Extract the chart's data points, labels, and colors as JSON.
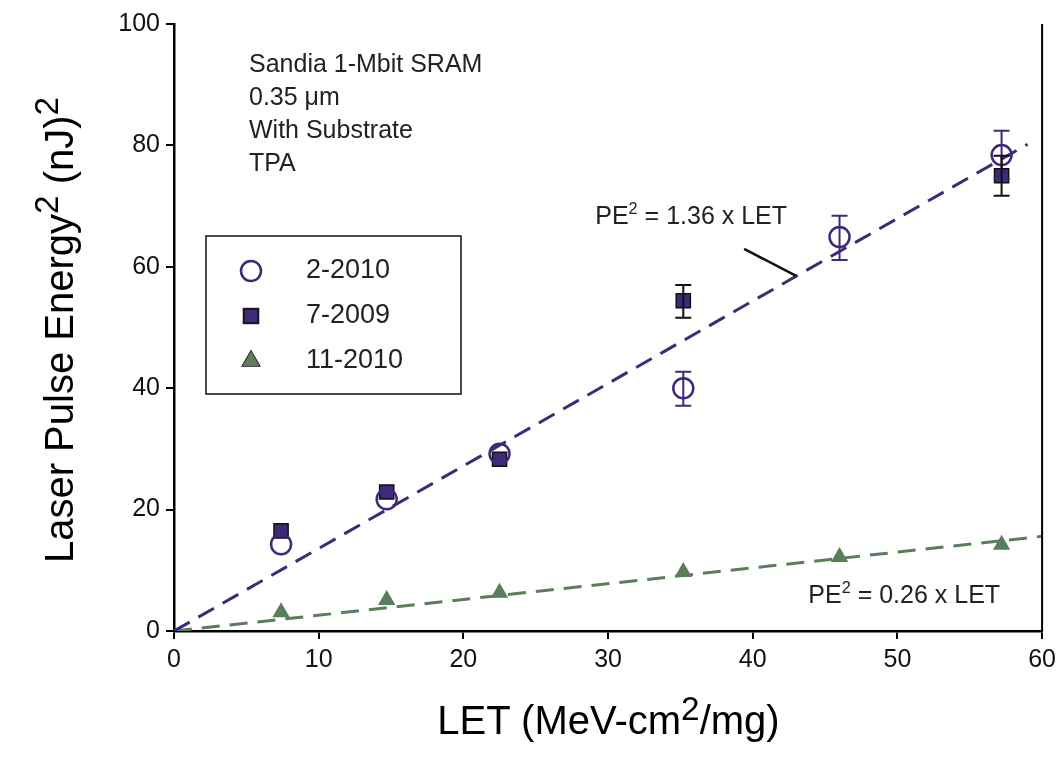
{
  "chart_data": {
    "type": "scatter",
    "xlabel": "LET (MeV-cm$^{2}$/mg)",
    "ylabel": "Laser Pulse Energy$^{2}$ (nJ)$^{2}$",
    "xlim": [
      0,
      60
    ],
    "xticks": [
      0,
      10,
      20,
      30,
      40,
      50,
      60
    ],
    "ylim": [
      0,
      100
    ],
    "yticks": [
      0,
      20,
      40,
      60,
      80,
      100
    ],
    "legend": "left",
    "grid": false,
    "annotations": [
      "Sandia 1-Mbit SRAM",
      "0.35 μm",
      "With Substrate",
      "TPA",
      {
        "text": "PE$^{2}$ = 1.36 x LET",
        "x": 43,
        "y": 58.5
      },
      "PE$^{2}$ = 0.26 x LET"
    ],
    "series": [
      {
        "name": "2-2010",
        "color": "#3f2a7a",
        "marker": "circle",
        "x": [
          7.4,
          14.7,
          22.5,
          35.2,
          46,
          57.2
        ],
        "values": [
          14.3,
          21.7,
          29.2,
          40,
          64.9,
          78.4
        ],
        "errors": [
          null,
          null,
          null,
          [
            37.1,
            42.7
          ],
          [
            61.1,
            68.4
          ],
          [
            74.5,
            82.4
          ]
        ]
      },
      {
        "name": "7-2009",
        "color": "#3f2a7a",
        "marker": "square",
        "x": [
          7.4,
          14.7,
          22.5,
          35.2,
          57.2
        ],
        "values": [
          16.5,
          22.9,
          28.3,
          54.4,
          75
        ],
        "errors": [
          null,
          null,
          null,
          [
            51.6,
            57
          ],
          [
            71.7,
            78.3
          ]
        ]
      },
      {
        "name": "11-2010",
        "color": "#5a7d5a",
        "marker": "triangle",
        "x": [
          7.4,
          14.7,
          22.5,
          35.2,
          46,
          57.2
        ],
        "values": [
          3.1,
          5.1,
          6.3,
          9.7,
          12.2,
          14.2
        ]
      },
      {
        "type": "line",
        "color": "#3f2a7a",
        "line_style": "dashed",
        "marker": "none",
        "x": [
          0,
          59
        ],
        "values": [
          0,
          80.2
        ]
      },
      {
        "type": "line",
        "color": "#5a7d5a",
        "line_style": "dashed",
        "marker": "none",
        "x": [
          0,
          60
        ],
        "values": [
          0,
          15.6
        ]
      }
    ]
  }
}
